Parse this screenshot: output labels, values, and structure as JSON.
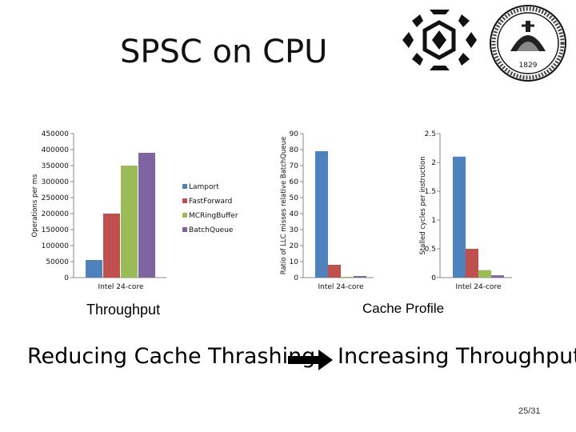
{
  "slide": {
    "title": "SPSC on CPU",
    "caption_throughput": "Throughput",
    "caption_cache": "Cache Profile",
    "conclusion_left": "Reducing Cache Thrashing",
    "conclusion_right": "Increasing Throughput",
    "page_number": "25/31",
    "logo_year": "1829"
  },
  "colors": {
    "Lamport": "#4f81bd",
    "FastForward": "#c0504d",
    "MCRingBuffer": "#9bbb59",
    "BatchQueue": "#8064a2"
  },
  "legend": [
    "Lamport",
    "FastForward",
    "MCRingBuffer",
    "BatchQueue"
  ],
  "chart_data": [
    {
      "type": "bar",
      "categories": [
        "Intel 24-core"
      ],
      "series": [
        {
          "name": "Lamport",
          "values": [
            55000
          ]
        },
        {
          "name": "FastForward",
          "values": [
            200000
          ]
        },
        {
          "name": "MCRingBuffer",
          "values": [
            350000
          ]
        },
        {
          "name": "BatchQueue",
          "values": [
            390000
          ]
        }
      ],
      "ylabel": "Operations per ms",
      "ylim": [
        0,
        450000
      ],
      "yticks": [
        "0",
        "50000",
        "100000",
        "150000",
        "200000",
        "250000",
        "300000",
        "350000",
        "400000",
        "450000"
      ],
      "legend_position": "right"
    },
    {
      "type": "bar",
      "categories": [
        "Intel 24-core"
      ],
      "series": [
        {
          "name": "Lamport",
          "values": [
            79
          ]
        },
        {
          "name": "FastForward",
          "values": [
            8
          ]
        },
        {
          "name": "MCRingBuffer",
          "values": [
            0.5
          ]
        },
        {
          "name": "BatchQueue",
          "values": [
            1
          ]
        }
      ],
      "ylabel": "Ratio of LLC misses relative BatchQueue",
      "ylim": [
        0,
        90
      ],
      "yticks": [
        "0",
        "10",
        "20",
        "30",
        "40",
        "50",
        "60",
        "70",
        "80",
        "90"
      ]
    },
    {
      "type": "bar",
      "categories": [
        "Intel 24-core"
      ],
      "series": [
        {
          "name": "Lamport",
          "values": [
            2.1
          ]
        },
        {
          "name": "FastForward",
          "values": [
            0.5
          ]
        },
        {
          "name": "MCRingBuffer",
          "values": [
            0.13
          ]
        },
        {
          "name": "BatchQueue",
          "values": [
            0.04
          ]
        }
      ],
      "ylabel": "Stalled cycles per instruction",
      "ylim": [
        0,
        2.5
      ],
      "yticks": [
        "0",
        "0.5",
        "1",
        "1.5",
        "2",
        "2.5"
      ]
    }
  ]
}
